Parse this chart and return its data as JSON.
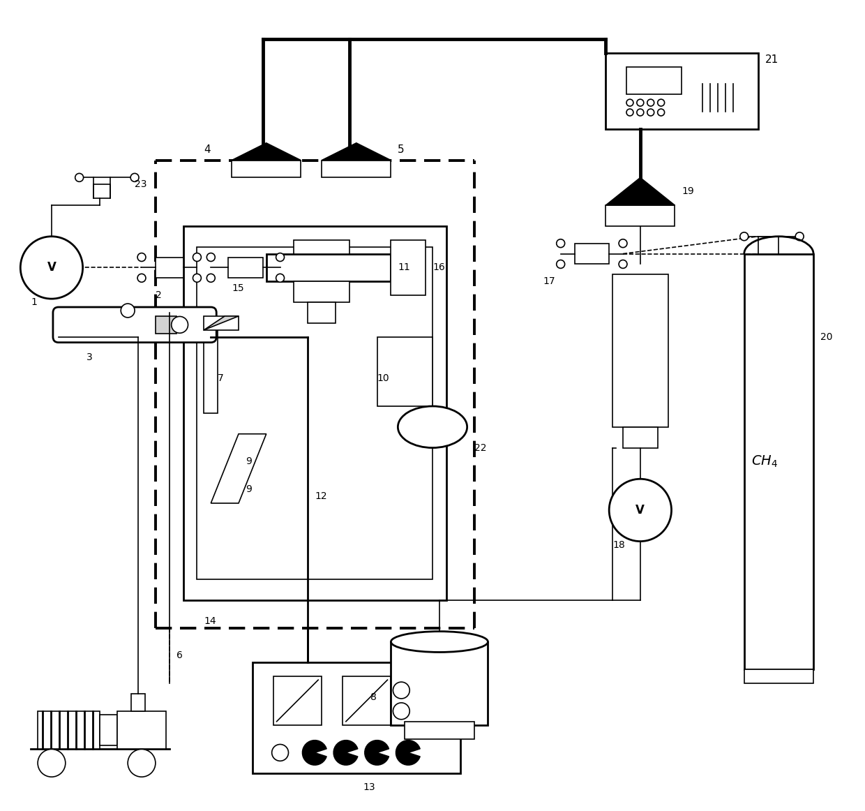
{
  "fig_width": 12.4,
  "fig_height": 11.62,
  "bg_color": "#ffffff",
  "lw_thin": 1.2,
  "lw_med": 2.0,
  "lw_thick": 3.5,
  "lw_dash": 2.8
}
